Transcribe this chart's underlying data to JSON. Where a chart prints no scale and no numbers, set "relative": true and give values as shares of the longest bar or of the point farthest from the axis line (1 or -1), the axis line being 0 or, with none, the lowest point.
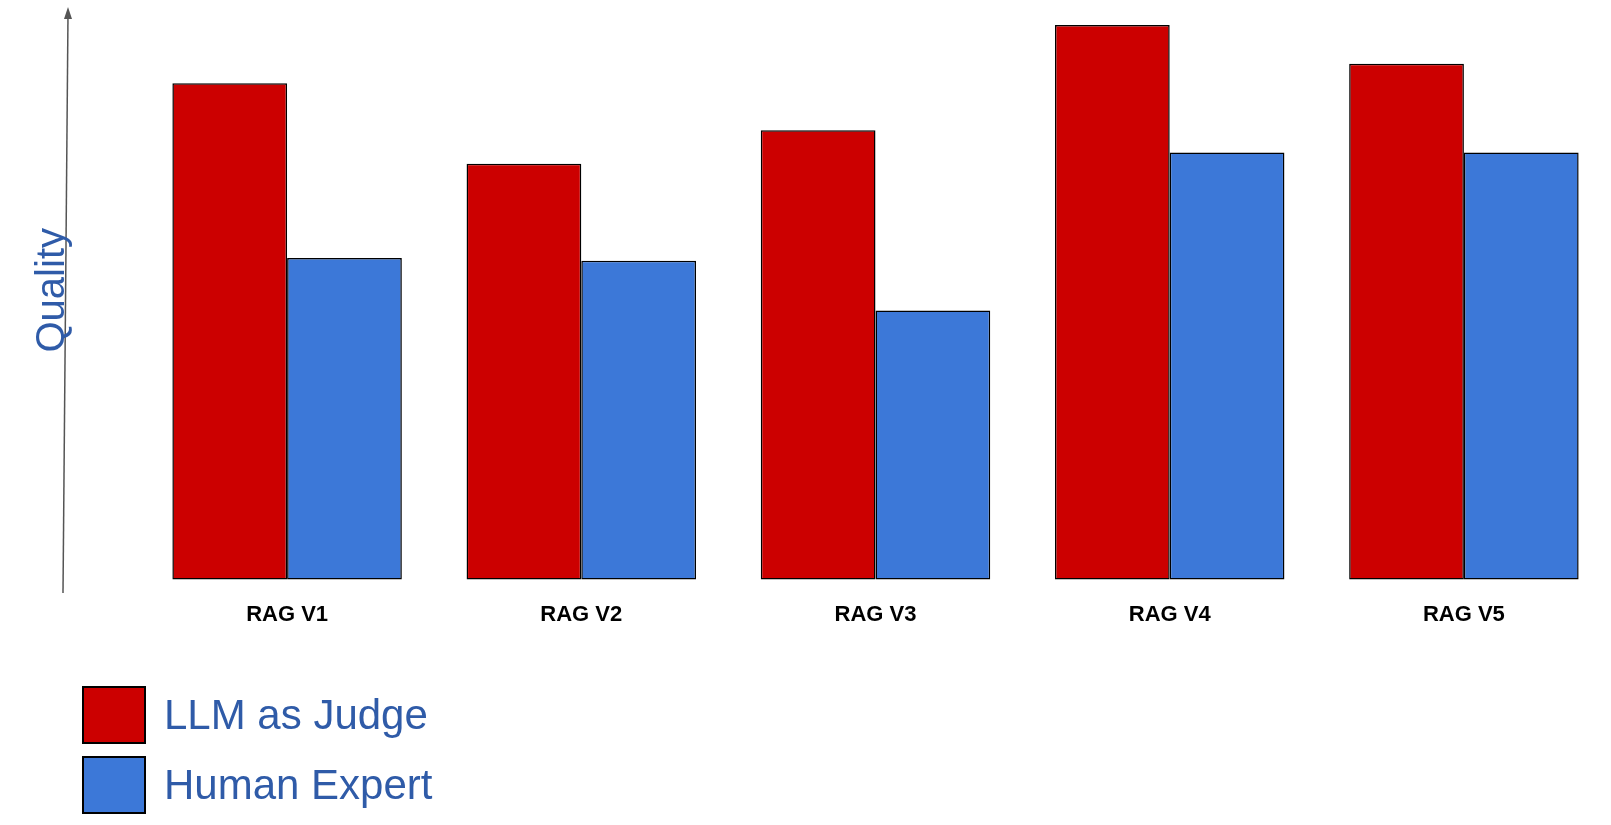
{
  "chart_data": {
    "type": "bar",
    "relative": true,
    "ylabel": "Quality",
    "categories": [
      "RAG V1",
      "RAG V2",
      "RAG V3",
      "RAG V4",
      "RAG V5"
    ],
    "series": [
      {
        "name": "LLM as Judge",
        "color": "#cc0000",
        "values": [
          0.895,
          0.75,
          0.81,
          1,
          0.93
        ]
      },
      {
        "name": "Human Expert",
        "color": "#3c78d8",
        "values": [
          0.58,
          0.575,
          0.485,
          0.77,
          0.77
        ]
      }
    ],
    "legend": "bottom left",
    "grid": false
  }
}
